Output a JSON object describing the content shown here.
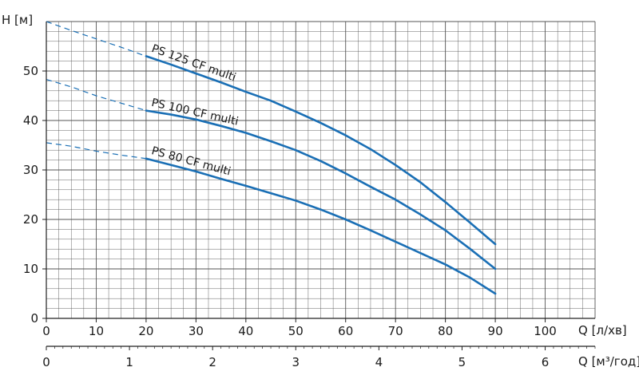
{
  "chart_data": {
    "type": "line",
    "title": "",
    "ylabel": "H [м]",
    "xlabel": "Q [л/хв]",
    "x2label": "Q [м³/год]",
    "xlim": [
      0,
      110
    ],
    "ylim": [
      0,
      60
    ],
    "x_ticks": [
      0,
      10,
      20,
      30,
      40,
      50,
      60,
      70,
      80,
      90,
      100
    ],
    "y_ticks": [
      0,
      10,
      20,
      30,
      40,
      50
    ],
    "x2_ticks": [
      0,
      1,
      2,
      3,
      4,
      5,
      6
    ],
    "grid": true,
    "series": [
      {
        "name": "PS 125 CF multi",
        "dashed_x": [
          0,
          5,
          10,
          15,
          20
        ],
        "dashed_y": [
          60,
          58.2,
          56.5,
          54.8,
          53
        ],
        "x": [
          20,
          25,
          30,
          35,
          40,
          45,
          50,
          55,
          60,
          65,
          70,
          75,
          80,
          85,
          90
        ],
        "y": [
          53,
          51.3,
          49.5,
          47.7,
          45.8,
          44,
          41.8,
          39.5,
          37,
          34.2,
          31,
          27.5,
          23.5,
          19.3,
          15
        ]
      },
      {
        "name": "PS 100 CF multi",
        "dashed_x": [
          0,
          5,
          10,
          15,
          20
        ],
        "dashed_y": [
          48.3,
          46.8,
          45,
          43.5,
          42
        ],
        "x": [
          20,
          25,
          30,
          35,
          40,
          45,
          50,
          55,
          60,
          65,
          70,
          75,
          80,
          85,
          90
        ],
        "y": [
          42,
          41.2,
          40.2,
          38.9,
          37.5,
          35.8,
          34,
          31.8,
          29.3,
          26.6,
          24,
          21,
          17.8,
          14,
          10
        ]
      },
      {
        "name": "PS 80 CF multi",
        "dashed_x": [
          0,
          5,
          10,
          15,
          20
        ],
        "dashed_y": [
          35.5,
          34.8,
          33.8,
          33,
          32.3
        ],
        "x": [
          20,
          25,
          30,
          35,
          40,
          45,
          50,
          55,
          60,
          65,
          70,
          75,
          80,
          85,
          90
        ],
        "y": [
          32.3,
          31,
          29.7,
          28.2,
          26.8,
          25.3,
          23.8,
          22,
          20,
          17.8,
          15.5,
          13.2,
          10.9,
          8.2,
          5
        ]
      }
    ]
  },
  "colors": {
    "curve": "#1a6fb5",
    "grid": "#555555",
    "axis": "#222222"
  }
}
